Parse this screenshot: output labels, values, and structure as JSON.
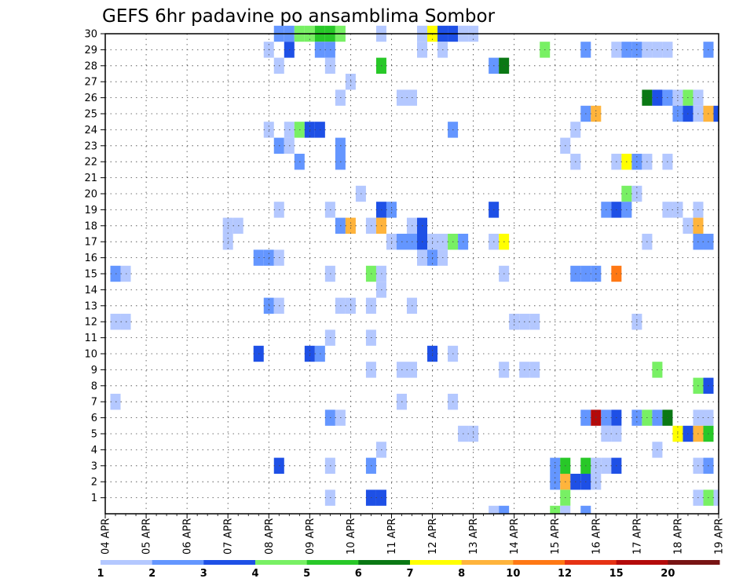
{
  "chart_data": {
    "type": "heatmap",
    "title": "GEFS 6hr padavine po ansamblima Sombor",
    "xlabel": "",
    "ylabel": "",
    "x_ticks": [
      "04 APR",
      "05 APR",
      "06 APR",
      "07 APR",
      "08 APR",
      "09 APR",
      "10 APR",
      "11 APR",
      "12 APR",
      "13 APR",
      "14 APR",
      "15 APR",
      "16 APR",
      "17 APR",
      "18 APR",
      "19 APR"
    ],
    "x_unit": "6-hour step (4 steps per day, starting 04 APR 00Z)",
    "xlim": [
      0,
      60
    ],
    "y_ticks": [
      1,
      2,
      3,
      4,
      5,
      6,
      7,
      8,
      9,
      10,
      11,
      12,
      13,
      14,
      15,
      16,
      17,
      18,
      19,
      20,
      21,
      22,
      23,
      24,
      25,
      26,
      27,
      28,
      29,
      30
    ],
    "ylim": [
      0,
      30
    ],
    "grid": true,
    "colorbar": {
      "levels": [
        1,
        2,
        3,
        4,
        5,
        6,
        7,
        8,
        10,
        12,
        15,
        20
      ],
      "labels": [
        "1",
        "2",
        "3",
        "4",
        "5",
        "6",
        "7",
        "8",
        "10",
        "12",
        "15",
        "20"
      ],
      "colors": [
        "#b4c8ff",
        "#6496ff",
        "#1e50e6",
        "#78f064",
        "#28c828",
        "#0a7814",
        "#ffff00",
        "#ffb43c",
        "#ff7814",
        "#e63214",
        "#b40a0a",
        "#781414"
      ]
    },
    "cells": [
      [
        30,
        17,
        2
      ],
      [
        30,
        18,
        2
      ],
      [
        30,
        19,
        4
      ],
      [
        30,
        20,
        4
      ],
      [
        30,
        21,
        5
      ],
      [
        30,
        22,
        5
      ],
      [
        30,
        23,
        4
      ],
      [
        30,
        27,
        1
      ],
      [
        30,
        31,
        1
      ],
      [
        30,
        32,
        7
      ],
      [
        30,
        33,
        3
      ],
      [
        30,
        34,
        3
      ],
      [
        30,
        35,
        1
      ],
      [
        30,
        36,
        1
      ],
      [
        29,
        16,
        1
      ],
      [
        29,
        18,
        3
      ],
      [
        29,
        21,
        2
      ],
      [
        29,
        22,
        2
      ],
      [
        29,
        31,
        1
      ],
      [
        29,
        33,
        1
      ],
      [
        29,
        43,
        4
      ],
      [
        29,
        47,
        2
      ],
      [
        29,
        50,
        1
      ],
      [
        29,
        51,
        2
      ],
      [
        29,
        52,
        2
      ],
      [
        29,
        53,
        1
      ],
      [
        29,
        54,
        1
      ],
      [
        29,
        55,
        1
      ],
      [
        29,
        59,
        2
      ],
      [
        28,
        17,
        1
      ],
      [
        28,
        22,
        1
      ],
      [
        28,
        27,
        5
      ],
      [
        28,
        38,
        2
      ],
      [
        28,
        39,
        6
      ],
      [
        27,
        24,
        1
      ],
      [
        26,
        23,
        1
      ],
      [
        26,
        29,
        1
      ],
      [
        26,
        30,
        1
      ],
      [
        26,
        53,
        6
      ],
      [
        26,
        54,
        3
      ],
      [
        26,
        55,
        2
      ],
      [
        26,
        56,
        1
      ],
      [
        26,
        57,
        4
      ],
      [
        26,
        58,
        1
      ],
      [
        25,
        47,
        2
      ],
      [
        25,
        48,
        8
      ],
      [
        25,
        56,
        2
      ],
      [
        25,
        57,
        3
      ],
      [
        25,
        58,
        1
      ],
      [
        25,
        59,
        8
      ],
      [
        25,
        60,
        3
      ],
      [
        24,
        16,
        1
      ],
      [
        24,
        18,
        1
      ],
      [
        24,
        19,
        4
      ],
      [
        24,
        20,
        3
      ],
      [
        24,
        21,
        3
      ],
      [
        24,
        34,
        2
      ],
      [
        24,
        46,
        1
      ],
      [
        23,
        17,
        2
      ],
      [
        23,
        18,
        1
      ],
      [
        23,
        23,
        2
      ],
      [
        23,
        45,
        1
      ],
      [
        22,
        19,
        2
      ],
      [
        22,
        23,
        2
      ],
      [
        22,
        46,
        1
      ],
      [
        22,
        50,
        1
      ],
      [
        22,
        51,
        7
      ],
      [
        22,
        52,
        2
      ],
      [
        22,
        53,
        1
      ],
      [
        22,
        55,
        1
      ],
      [
        20,
        25,
        1
      ],
      [
        20,
        51,
        4
      ],
      [
        20,
        52,
        1
      ],
      [
        19,
        17,
        1
      ],
      [
        19,
        22,
        1
      ],
      [
        19,
        27,
        3
      ],
      [
        19,
        28,
        2
      ],
      [
        19,
        38,
        3
      ],
      [
        19,
        49,
        2
      ],
      [
        19,
        50,
        3
      ],
      [
        19,
        51,
        2
      ],
      [
        19,
        55,
        1
      ],
      [
        19,
        56,
        1
      ],
      [
        19,
        58,
        1
      ],
      [
        18,
        12,
        1
      ],
      [
        18,
        13,
        1
      ],
      [
        18,
        23,
        2
      ],
      [
        18,
        24,
        8
      ],
      [
        18,
        26,
        1
      ],
      [
        18,
        27,
        8
      ],
      [
        18,
        30,
        1
      ],
      [
        18,
        31,
        3
      ],
      [
        18,
        57,
        1
      ],
      [
        18,
        58,
        8
      ],
      [
        17,
        12,
        1
      ],
      [
        17,
        28,
        1
      ],
      [
        17,
        29,
        2
      ],
      [
        17,
        30,
        2
      ],
      [
        17,
        31,
        3
      ],
      [
        17,
        32,
        1
      ],
      [
        17,
        33,
        1
      ],
      [
        17,
        34,
        4
      ],
      [
        17,
        35,
        2
      ],
      [
        17,
        38,
        1
      ],
      [
        17,
        39,
        7
      ],
      [
        17,
        53,
        1
      ],
      [
        17,
        58,
        2
      ],
      [
        17,
        59,
        2
      ],
      [
        16,
        15,
        2
      ],
      [
        16,
        16,
        2
      ],
      [
        16,
        17,
        1
      ],
      [
        16,
        31,
        1
      ],
      [
        16,
        32,
        2
      ],
      [
        16,
        33,
        1
      ],
      [
        15,
        1,
        2
      ],
      [
        15,
        2,
        1
      ],
      [
        15,
        22,
        1
      ],
      [
        15,
        26,
        4
      ],
      [
        15,
        27,
        1
      ],
      [
        15,
        39,
        1
      ],
      [
        15,
        46,
        2
      ],
      [
        15,
        47,
        2
      ],
      [
        15,
        48,
        2
      ],
      [
        15,
        50,
        9
      ],
      [
        14,
        27,
        1
      ],
      [
        13,
        16,
        2
      ],
      [
        13,
        17,
        1
      ],
      [
        13,
        23,
        1
      ],
      [
        13,
        24,
        1
      ],
      [
        13,
        26,
        1
      ],
      [
        13,
        30,
        1
      ],
      [
        12,
        1,
        1
      ],
      [
        12,
        2,
        1
      ],
      [
        12,
        40,
        1
      ],
      [
        12,
        41,
        1
      ],
      [
        12,
        42,
        1
      ],
      [
        12,
        52,
        1
      ],
      [
        11,
        22,
        1
      ],
      [
        11,
        26,
        1
      ],
      [
        10,
        15,
        3
      ],
      [
        10,
        20,
        3
      ],
      [
        10,
        21,
        2
      ],
      [
        10,
        32,
        3
      ],
      [
        10,
        34,
        1
      ],
      [
        9,
        26,
        1
      ],
      [
        9,
        29,
        1
      ],
      [
        9,
        30,
        1
      ],
      [
        9,
        39,
        1
      ],
      [
        9,
        41,
        1
      ],
      [
        9,
        42,
        1
      ],
      [
        9,
        54,
        4
      ],
      [
        8,
        58,
        4
      ],
      [
        8,
        59,
        3
      ],
      [
        7,
        1,
        1
      ],
      [
        7,
        29,
        1
      ],
      [
        7,
        34,
        1
      ],
      [
        6,
        22,
        2
      ],
      [
        6,
        23,
        1
      ],
      [
        6,
        47,
        2
      ],
      [
        6,
        48,
        11
      ],
      [
        6,
        49,
        2
      ],
      [
        6,
        50,
        3
      ],
      [
        6,
        52,
        2
      ],
      [
        6,
        53,
        4
      ],
      [
        6,
        54,
        2
      ],
      [
        6,
        55,
        6
      ],
      [
        6,
        58,
        1
      ],
      [
        6,
        59,
        1
      ],
      [
        5,
        35,
        1
      ],
      [
        5,
        36,
        1
      ],
      [
        5,
        49,
        1
      ],
      [
        5,
        50,
        1
      ],
      [
        5,
        56,
        7
      ],
      [
        5,
        57,
        3
      ],
      [
        5,
        58,
        8
      ],
      [
        5,
        59,
        5
      ],
      [
        4,
        27,
        1
      ],
      [
        4,
        54,
        1
      ],
      [
        3,
        17,
        3
      ],
      [
        3,
        22,
        1
      ],
      [
        3,
        26,
        2
      ],
      [
        3,
        44,
        2
      ],
      [
        3,
        45,
        5
      ],
      [
        3,
        47,
        5
      ],
      [
        3,
        48,
        1
      ],
      [
        3,
        49,
        1
      ],
      [
        3,
        50,
        3
      ],
      [
        3,
        58,
        1
      ],
      [
        3,
        59,
        2
      ],
      [
        2,
        44,
        2
      ],
      [
        2,
        45,
        8
      ],
      [
        2,
        46,
        3
      ],
      [
        2,
        47,
        3
      ],
      [
        2,
        48,
        1
      ],
      [
        1,
        22,
        1
      ],
      [
        1,
        26,
        3
      ],
      [
        1,
        27,
        3
      ],
      [
        1,
        45,
        4
      ],
      [
        1,
        58,
        1
      ],
      [
        1,
        59,
        4
      ],
      [
        1,
        60,
        1
      ]
    ],
    "row0_cells": [
      [
        38,
        1
      ],
      [
        39,
        2
      ],
      [
        44,
        4
      ],
      [
        45,
        1
      ],
      [
        47,
        2
      ]
    ]
  }
}
